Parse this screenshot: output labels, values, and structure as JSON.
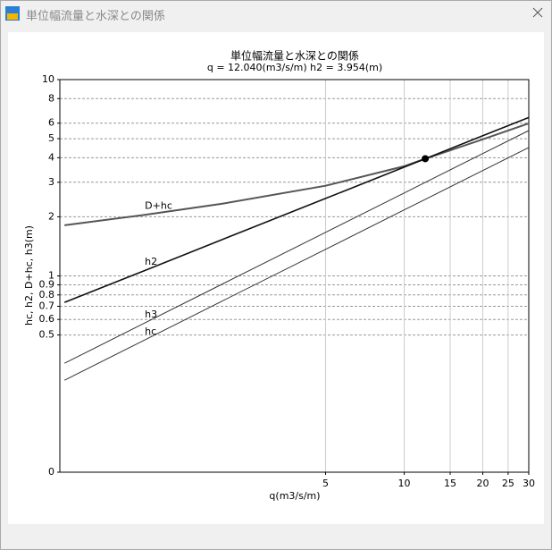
{
  "window": {
    "title": "単位幅流量と水深との関係"
  },
  "chart_data": {
    "type": "line",
    "title": "単位幅流量と水深との関係",
    "subtitle": "q = 12.040(m3/s/m)  h2 = 3.954(m)",
    "x_label": "q(m3/s/m)",
    "y_label": "hc, h2, D+hc, h3(m)",
    "log_x": true,
    "log_y": true,
    "xlim": [
      0.48,
      30
    ],
    "xticks": [
      5,
      10,
      15,
      20,
      25,
      30
    ],
    "ylim": [
      0.1,
      10
    ],
    "yticks": [
      10,
      8,
      6,
      5,
      4,
      3,
      2,
      1,
      0.9,
      0.8,
      0.7,
      0.6,
      0.5,
      {
        "value": 0.1,
        "label": "0"
      }
    ],
    "grid": true,
    "x": [
      0.5,
      1,
      2,
      5,
      10,
      12.04,
      20,
      30
    ],
    "series": [
      {
        "name": "D+hc",
        "color": "#555555",
        "values": [
          1.81,
          2.04,
          2.33,
          2.88,
          3.62,
          3.954,
          4.96,
          5.99
        ]
      },
      {
        "name": "h2",
        "color": "#111111",
        "values": [
          0.733,
          1.057,
          1.527,
          2.48,
          3.58,
          3.954,
          5.18,
          6.41
        ]
      },
      {
        "name": "h3",
        "color": "#333333",
        "values": [
          0.359,
          0.57,
          0.905,
          1.667,
          2.645,
          2.995,
          4.2,
          5.5
        ]
      },
      {
        "name": "hc",
        "color": "#333333",
        "values": [
          0.294,
          0.467,
          0.742,
          1.366,
          2.168,
          2.455,
          3.442,
          4.512
        ]
      }
    ],
    "marker": {
      "x": 12.04,
      "y": 3.954
    }
  }
}
